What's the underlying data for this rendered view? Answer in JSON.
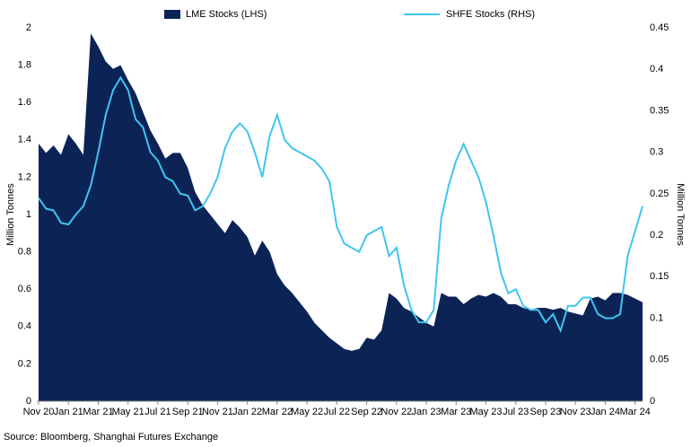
{
  "chart_data": {
    "type": "area_line",
    "categories": [
      "Nov 20",
      null,
      null,
      null,
      "Jan 21",
      null,
      null,
      null,
      "Mar 21",
      null,
      null,
      null,
      "May 21",
      null,
      null,
      null,
      "Jul 21",
      null,
      null,
      null,
      "Sep 21",
      null,
      null,
      null,
      "Nov 21",
      null,
      null,
      null,
      "Jan 22",
      null,
      null,
      null,
      "Mar 22",
      null,
      null,
      null,
      "May 22",
      null,
      null,
      null,
      "Jul 22",
      null,
      null,
      null,
      "Sep 22",
      null,
      null,
      null,
      "Nov 22",
      null,
      null,
      null,
      "Jan 23",
      null,
      null,
      null,
      "Mar 23",
      null,
      null,
      null,
      "May 23",
      null,
      null,
      null,
      "Jul 23",
      null,
      null,
      null,
      "Sep 23",
      null,
      null,
      null,
      "Nov 23",
      null,
      null,
      null,
      "Jan 24",
      null,
      null,
      null,
      "Mar 24",
      null
    ],
    "series": [
      {
        "name": "LME Stocks (LHS)",
        "color": "#0c2356",
        "axis": "y",
        "values": [
          1.38,
          1.33,
          1.37,
          1.32,
          1.43,
          1.38,
          1.32,
          1.97,
          1.9,
          1.82,
          1.78,
          1.8,
          1.72,
          1.65,
          1.55,
          1.45,
          1.38,
          1.3,
          1.33,
          1.33,
          1.25,
          1.12,
          1.05,
          1.0,
          0.95,
          0.9,
          0.97,
          0.93,
          0.88,
          0.78,
          0.86,
          0.8,
          0.68,
          0.62,
          0.58,
          0.53,
          0.48,
          0.42,
          0.38,
          0.34,
          0.31,
          0.28,
          0.27,
          0.28,
          0.34,
          0.33,
          0.38,
          0.58,
          0.55,
          0.5,
          0.48,
          0.45,
          0.42,
          0.4,
          0.58,
          0.56,
          0.56,
          0.52,
          0.55,
          0.57,
          0.56,
          0.58,
          0.56,
          0.52,
          0.52,
          0.5,
          0.49,
          0.5,
          0.5,
          0.49,
          0.5,
          0.48,
          0.47,
          0.46,
          0.55,
          0.56,
          0.54,
          0.58,
          0.58,
          0.57,
          0.55,
          0.53
        ]
      },
      {
        "name": "SHFE Stocks (RHS)",
        "color": "#3ec6f0",
        "axis": "y2",
        "values": [
          0.245,
          0.232,
          0.23,
          0.215,
          0.213,
          0.225,
          0.235,
          0.26,
          0.3,
          0.345,
          0.375,
          0.39,
          0.375,
          0.34,
          0.33,
          0.3,
          0.29,
          0.27,
          0.265,
          0.25,
          0.248,
          0.23,
          0.235,
          0.25,
          0.27,
          0.305,
          0.325,
          0.335,
          0.325,
          0.3,
          0.27,
          0.32,
          0.345,
          0.315,
          0.305,
          0.3,
          0.295,
          0.29,
          0.28,
          0.265,
          0.21,
          0.19,
          0.185,
          0.18,
          0.2,
          0.205,
          0.21,
          0.175,
          0.185,
          0.14,
          0.11,
          0.095,
          0.095,
          0.11,
          0.22,
          0.26,
          0.29,
          0.31,
          0.29,
          0.27,
          0.24,
          0.2,
          0.155,
          0.13,
          0.135,
          0.115,
          0.11,
          0.11,
          0.095,
          0.105,
          0.085,
          0.115,
          0.115,
          0.125,
          0.125,
          0.105,
          0.1,
          0.1,
          0.105,
          0.175,
          0.205,
          0.235
        ]
      }
    ],
    "ylim": [
      0,
      2
    ],
    "yticks": [
      0,
      0.2,
      0.4,
      0.6,
      0.8,
      1,
      1.2,
      1.4,
      1.6,
      1.8,
      2
    ],
    "y2lim": [
      0,
      0.45
    ],
    "y2ticks": [
      0,
      0.05,
      0.1,
      0.15,
      0.2,
      0.25,
      0.3,
      0.35,
      0.4,
      0.45
    ],
    "ylabel": "Million Tonnes",
    "y2label": "Million Tonnes",
    "source": "Source: Bloomberg, Shanghai Futures Exchange",
    "legend": "top"
  }
}
